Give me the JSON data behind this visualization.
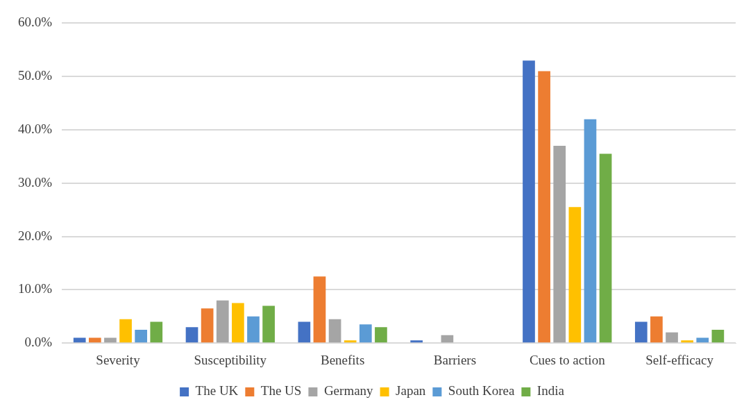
{
  "chart_data": {
    "type": "bar",
    "categories": [
      "Severity",
      "Susceptibility",
      "Benefits",
      "Barriers",
      "Cues to action",
      "Self-efficacy"
    ],
    "series": [
      {
        "name": "The UK",
        "color": "#4472c4",
        "values": [
          1.0,
          3.0,
          4.0,
          0.5,
          53.0,
          4.0
        ]
      },
      {
        "name": "The US",
        "color": "#ed7d31",
        "values": [
          1.0,
          6.5,
          12.5,
          0,
          51.0,
          5.0
        ]
      },
      {
        "name": "Germany",
        "color": "#a5a5a5",
        "values": [
          1.0,
          8.0,
          4.5,
          1.5,
          37.0,
          2.0
        ]
      },
      {
        "name": "Japan",
        "color": "#ffc000",
        "values": [
          4.5,
          7.5,
          0.5,
          0,
          25.5,
          0.5
        ]
      },
      {
        "name": "South Korea",
        "color": "#5b9bd5",
        "values": [
          2.5,
          5.0,
          3.5,
          0,
          42.0,
          1.0
        ]
      },
      {
        "name": "India",
        "color": "#70ad47",
        "values": [
          4.0,
          7.0,
          3.0,
          0,
          35.5,
          2.5
        ]
      }
    ],
    "ylim": [
      0,
      60
    ],
    "yticks": [
      {
        "value": 0,
        "label": "0.0%"
      },
      {
        "value": 10,
        "label": "10.0%"
      },
      {
        "value": 20,
        "label": "20.0%"
      },
      {
        "value": 30,
        "label": "30.0%"
      },
      {
        "value": 40,
        "label": "40.0%"
      },
      {
        "value": 50,
        "label": "50.0%"
      },
      {
        "value": 60,
        "label": "60.0%"
      }
    ],
    "grid": "y",
    "legend": "bottom"
  }
}
